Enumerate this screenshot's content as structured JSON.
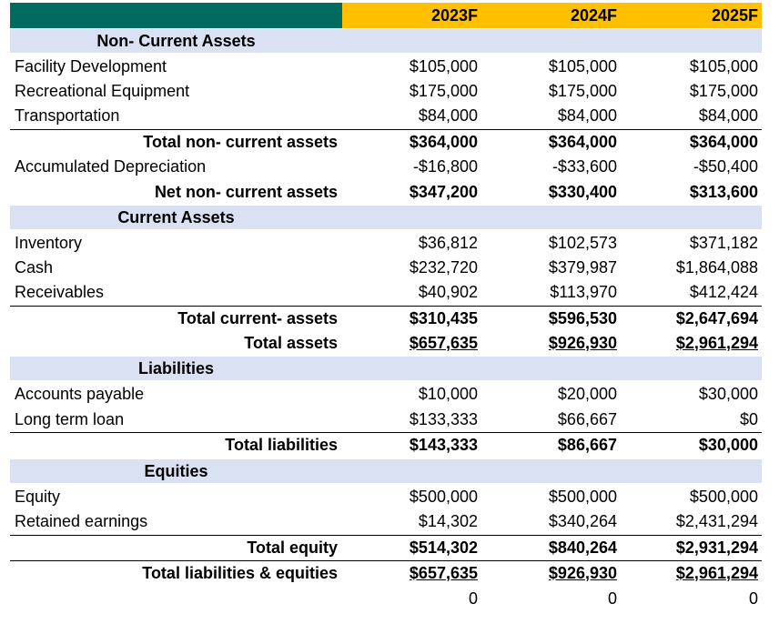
{
  "header": {
    "label": "",
    "years": [
      "2023F",
      "2024F",
      "2025F"
    ]
  },
  "sections": {
    "non_current": {
      "title": "Non- Current Assets",
      "rows": [
        {
          "label": "Facility Development",
          "values": [
            "$105,000",
            "$105,000",
            "$105,000"
          ]
        },
        {
          "label": "Recreational Equipment",
          "values": [
            "$175,000",
            "$175,000",
            "$175,000"
          ]
        },
        {
          "label": "Transportation",
          "values": [
            "$84,000",
            "$84,000",
            "$84,000"
          ]
        }
      ],
      "total": {
        "label": "Total non- current assets",
        "values": [
          "$364,000",
          "$364,000",
          "$364,000"
        ]
      },
      "depreciation": {
        "label": "Accumulated Depreciation",
        "values": [
          "-$16,800",
          "-$33,600",
          "-$50,400"
        ]
      },
      "net": {
        "label": "Net non- current assets",
        "values": [
          "$347,200",
          "$330,400",
          "$313,600"
        ]
      }
    },
    "current": {
      "title": "Current Assets",
      "rows": [
        {
          "label": "Inventory",
          "values": [
            "$36,812",
            "$102,573",
            "$371,182"
          ]
        },
        {
          "label": "Cash",
          "values": [
            "$232,720",
            "$379,987",
            "$1,864,088"
          ]
        },
        {
          "label": "Receivables",
          "values": [
            "$40,902",
            "$113,970",
            "$412,424"
          ]
        }
      ],
      "total": {
        "label": "Total current- assets",
        "values": [
          "$310,435",
          "$596,530",
          "$2,647,694"
        ]
      },
      "total_assets": {
        "label": "Total assets",
        "values": [
          "$657,635",
          "$926,930",
          "$2,961,294"
        ]
      }
    },
    "liabilities": {
      "title": "Liabilities",
      "rows": [
        {
          "label": "Accounts payable",
          "values": [
            "$10,000",
            "$20,000",
            "$30,000"
          ]
        },
        {
          "label": "Long term loan",
          "values": [
            "$133,333",
            "$66,667",
            "$0"
          ]
        }
      ],
      "total": {
        "label": "Total liabilities",
        "values": [
          "$143,333",
          "$86,667",
          "$30,000"
        ]
      }
    },
    "equities": {
      "title": "Equities",
      "rows": [
        {
          "label": "Equity",
          "values": [
            "$500,000",
            "$500,000",
            "$500,000"
          ]
        },
        {
          "label": "Retained earnings",
          "values": [
            "$14,302",
            "$340,264",
            "$2,431,294"
          ]
        }
      ],
      "total": {
        "label": "Total equity",
        "values": [
          "$514,302",
          "$840,264",
          "$2,931,294"
        ]
      },
      "total_le": {
        "label": "Total liabilities & equities",
        "values": [
          "$657,635",
          "$926,930",
          "$2,961,294"
        ]
      }
    }
  },
  "check": {
    "values": [
      "0",
      "0",
      "0"
    ]
  },
  "colors": {
    "header_fill": "#ffc000",
    "header_label_fill": "#006b5e",
    "section_band": "#d9e1f2"
  }
}
